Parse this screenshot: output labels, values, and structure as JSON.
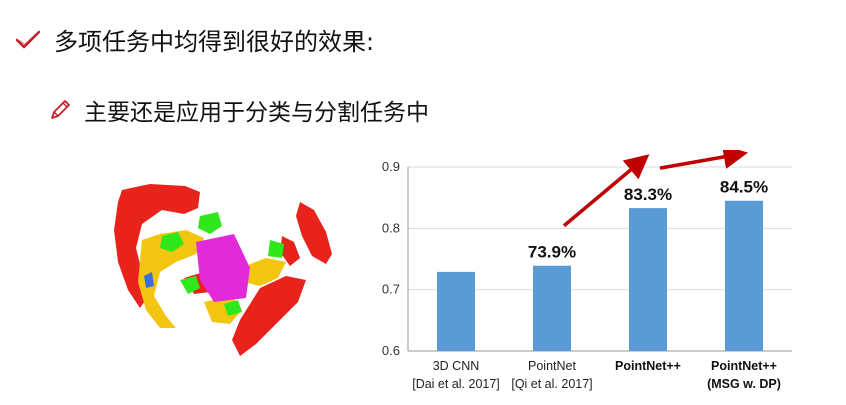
{
  "bullets": [
    {
      "text": "多项任务中均得到很好的效果:",
      "icon": "checkmark-icon"
    },
    {
      "text": "主要还是应用于分类与分割任务中",
      "icon": "pencil-icon"
    }
  ],
  "colors": {
    "accent": "#c0232b",
    "bar": "#5b9bd5",
    "arrow": "#c00000",
    "cloud_red": "#e8231c",
    "cloud_yellow": "#f2c511",
    "cloud_green": "#2fe81c",
    "cloud_magenta": "#e22ad8"
  },
  "chart_data": {
    "type": "bar",
    "categories": [
      {
        "line1": "3D CNN",
        "line2": "[Dai et al. 2017]",
        "bold": false
      },
      {
        "line1": "PointNet",
        "line2": "[Qi et al. 2017]",
        "bold": false
      },
      {
        "line1": "PointNet++",
        "line2": "",
        "bold": true
      },
      {
        "line1": "PointNet++",
        "line2": "(MSG w. DP)",
        "bold": true
      }
    ],
    "values": [
      0.729,
      0.739,
      0.833,
      0.845
    ],
    "data_labels": [
      "",
      "73.9%",
      "83.3%",
      "84.5%"
    ],
    "ylim": [
      0.6,
      0.9
    ],
    "yticks": [
      "0.6",
      "0.7",
      "0.8",
      "0.9"
    ],
    "grid": true
  }
}
